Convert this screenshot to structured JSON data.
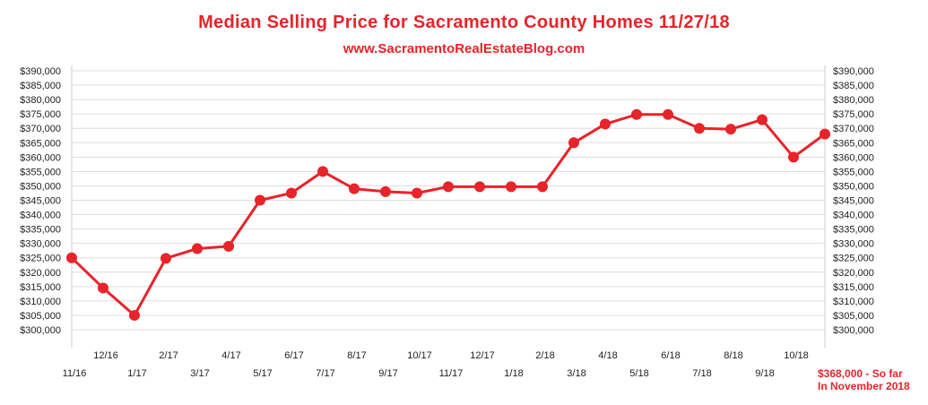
{
  "header": {
    "title": "Median Selling Price for Sacramento County Homes 11/27/18",
    "subtitle": "www.SacramentoRealEstateBlog.com"
  },
  "note": {
    "line1": "$368,000 - So far",
    "line2": "In November 2018"
  },
  "colors": {
    "series": "#e8232a",
    "grid": "#dddddd",
    "text": "#222222"
  },
  "chart_data": {
    "type": "line",
    "title": "Median Selling Price for Sacramento County Homes 11/27/18",
    "x": [
      "11/16",
      "12/16",
      "1/17",
      "2/17",
      "3/17",
      "4/17",
      "5/17",
      "6/17",
      "7/17",
      "8/17",
      "9/17",
      "10/17",
      "11/17",
      "12/17",
      "1/18",
      "2/18",
      "3/18",
      "4/18",
      "5/18",
      "6/18",
      "7/18",
      "8/18",
      "9/18",
      "10/18",
      "11/18"
    ],
    "series": [
      {
        "name": "",
        "values": [
          325000,
          314500,
          305000,
          324800,
          328200,
          329000,
          345000,
          347500,
          355000,
          349000,
          348000,
          347500,
          349700,
          349700,
          349700,
          349700,
          365000,
          371500,
          374800,
          374800,
          370000,
          369700,
          373000,
          360000,
          368000
        ]
      }
    ],
    "ylim": [
      300000,
      390000
    ],
    "yticks": [
      "$300,000",
      "$305,000",
      "$310,000",
      "$315,000",
      "$320,000",
      "$325,000",
      "$330,000",
      "$335,000",
      "$340,000",
      "$345,000",
      "$350,000",
      "$355,000",
      "$360,000",
      "$365,000",
      "$370,000",
      "$375,000",
      "$380,000",
      "$385,000",
      "$390,000"
    ],
    "grid": true,
    "legend": "none"
  }
}
